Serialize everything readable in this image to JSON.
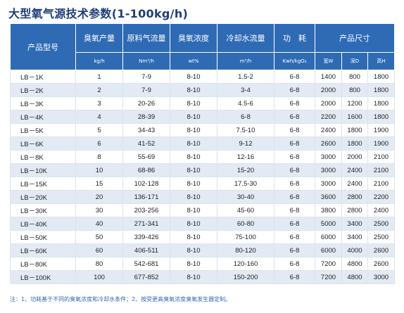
{
  "title": "大型氧气源技术参数(1-100kg/h)",
  "table": {
    "headers": {
      "model": "产品型号",
      "ozone_output": "臭氧产量",
      "gas_flow": "原料气流量",
      "concentration": "臭氧浓度",
      "cooling_flow": "冷却水流量",
      "power": "功　耗",
      "size": "产品尺寸"
    },
    "units": {
      "ozone_output": "kg/h",
      "gas_flow": "Nm³/h",
      "concentration": "wt%",
      "cooling_flow": "m³/h",
      "power": "Kwh/kgO₃",
      "width": "宽W",
      "depth": "深D",
      "height": "高H"
    },
    "rows": [
      [
        "LB－1K",
        "1",
        "7-9",
        "8-10",
        "1.5-2",
        "6-8",
        "1400",
        "800",
        "1800"
      ],
      [
        "LB－2K",
        "2",
        "7-9",
        "8-10",
        "3-4",
        "6-8",
        "2000",
        "800",
        "1800"
      ],
      [
        "LB－3K",
        "3",
        "20-26",
        "8-10",
        "4.5-6",
        "6-8",
        "2000",
        "1200",
        "1800"
      ],
      [
        "LB－4K",
        "4",
        "28-39",
        "8-10",
        "6-8",
        "6-8",
        "2200",
        "1600",
        "1800"
      ],
      [
        "LB－5K",
        "5",
        "34-43",
        "8-10",
        "7.5-10",
        "6-8",
        "2400",
        "1800",
        "1900"
      ],
      [
        "LB－6K",
        "6",
        "41-52",
        "8-10",
        "9-12",
        "6-8",
        "2600",
        "1800",
        "1900"
      ],
      [
        "LB－8K",
        "8",
        "55-69",
        "8-10",
        "12-16",
        "6-8",
        "3000",
        "2000",
        "2100"
      ],
      [
        "LB－10K",
        "10",
        "68-86",
        "8-10",
        "15-20",
        "6-8",
        "3000",
        "2400",
        "2100"
      ],
      [
        "LB－15K",
        "15",
        "102-128",
        "8-10",
        "17.5-30",
        "6-8",
        "3000",
        "2400",
        "2100"
      ],
      [
        "LB－20K",
        "20",
        "136-171",
        "8-10",
        "30-40",
        "6-8",
        "3600",
        "2800",
        "2200"
      ],
      [
        "LB－30K",
        "30",
        "203-256",
        "8-10",
        "45-60",
        "6-8",
        "3800",
        "2800",
        "2400"
      ],
      [
        "LB－40K",
        "40",
        "271-341",
        "8-10",
        "60-80",
        "6-8",
        "5000",
        "3400",
        "2500"
      ],
      [
        "LB－50K",
        "50",
        "339-426",
        "8-10",
        "75-100",
        "6-8",
        "6000",
        "3400",
        "2500"
      ],
      [
        "LB－60K",
        "60",
        "406-511",
        "8-10",
        "80-120",
        "6-8",
        "6000",
        "4000",
        "2600"
      ],
      [
        "LB－80K",
        "80",
        "542-681",
        "8-10",
        "120-160",
        "6-8",
        "7200",
        "4800",
        "2600"
      ],
      [
        "LB－100K",
        "100",
        "677-852",
        "8-10",
        "150-200",
        "6-8",
        "7200",
        "4800",
        "3000"
      ]
    ]
  },
  "note": "注：1、功耗基于不同的臭氧浓度和冷却水条件；2、按受更高臭氧浓度臭氧发生器定制。"
}
